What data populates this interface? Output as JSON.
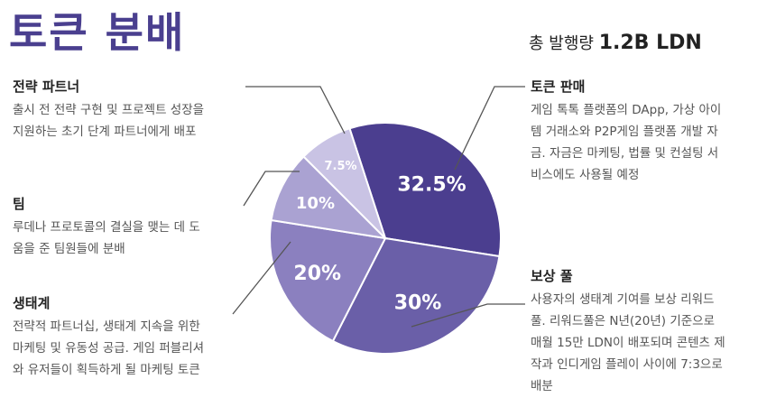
{
  "title": "토큰 분배",
  "total_supply": {
    "label": "총 발행량",
    "value": "1.2B LDN"
  },
  "chart_data": {
    "type": "pie",
    "title": "토큰 분배",
    "slices": [
      {
        "name": "토큰 판매",
        "value": 32.5,
        "label": "32.5%",
        "color": "#4b3e8f"
      },
      {
        "name": "보상 풀",
        "value": 30,
        "label": "30%",
        "color": "#6a5fa8"
      },
      {
        "name": "생태계",
        "value": 20,
        "label": "20%",
        "color": "#8b80bf"
      },
      {
        "name": "팀",
        "value": 10,
        "label": "10%",
        "color": "#aaa2d2"
      },
      {
        "name": "전략 파트너",
        "value": 7.5,
        "label": "7.5%",
        "color": "#c9c3e4"
      }
    ]
  },
  "descriptions": {
    "sale": {
      "head": "토큰 판매",
      "lines": [
        "게임 톡톡 플랫폼의 DApp, 가상 아이",
        "템 거래소와 P2P게임 플랫폼 개발 자",
        "금. 자금은 마케팅, 법률 및 컨설팅 서",
        "비스에도 사용될 예정"
      ]
    },
    "reward": {
      "head": "보상 풀",
      "lines": [
        "사용자의 생태계 기여를 보상 리워드",
        "풀. 리워드풀은 N년(20년) 기준으로",
        "매월 15만 LDN이 배포되며 콘텐츠 제",
        "작과 인디게임 플레이 사이에 7:3으로",
        "배분"
      ]
    },
    "ecosystem": {
      "head": "생태계",
      "lines": [
        "전략적 파트너십, 생태계 지속을 위한",
        "마케팅 및 유동성 공급. 게임 퍼블리셔",
        "와 유저들이 획득하게 될 마케팅 토큰"
      ]
    },
    "team": {
      "head": "팀",
      "lines": [
        "루데나 프로토콜의 결실을 맺는 데 도",
        "움을 준 팀원들에 분배"
      ]
    },
    "partner": {
      "head": "전략 파트너",
      "lines": [
        "출시 전 전략 구현 및 프로젝트 성장을",
        "지원하는 초기 단계 파트너에게 배포"
      ]
    }
  }
}
